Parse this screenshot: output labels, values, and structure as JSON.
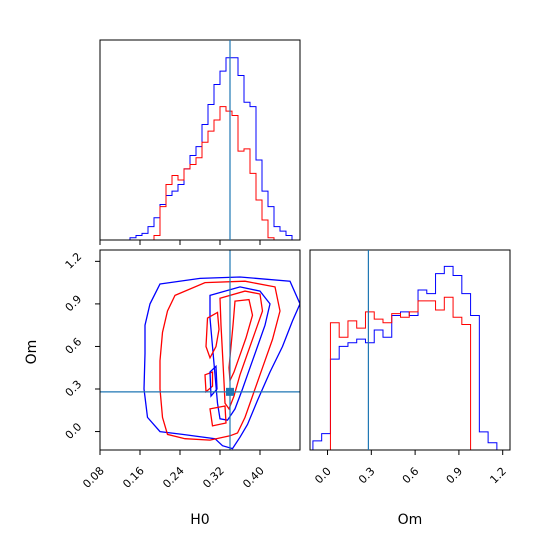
{
  "chart_data": {
    "type": "corner",
    "parameters": [
      "H0",
      "Om"
    ],
    "truths": {
      "H0": 0.34,
      "Om": 0.28
    },
    "colors": {
      "blue": "#0000ff",
      "red": "#ff0000",
      "truth": "#1f77b4"
    },
    "panels": [
      {
        "id": "hist-H0",
        "type": "histogram",
        "xlim": [
          0.08,
          0.48
        ],
        "x_ticks": [
          0.08,
          0.16,
          0.24,
          0.32,
          0.4
        ],
        "edges": [
          0.14,
          0.152,
          0.164,
          0.176,
          0.188,
          0.2,
          0.212,
          0.224,
          0.236,
          0.248,
          0.26,
          0.272,
          0.284,
          0.296,
          0.308,
          0.32,
          0.332,
          0.344,
          0.356,
          0.368,
          0.38,
          0.392,
          0.404,
          0.416,
          0.428,
          0.44,
          0.452,
          0.464
        ],
        "series": [
          {
            "name": "blue",
            "values": [
              0.01,
              0.02,
              0.03,
              0.06,
              0.1,
              0.16,
              0.2,
              0.22,
              0.25,
              0.32,
              0.38,
              0.42,
              0.52,
              0.61,
              0.7,
              0.76,
              0.82,
              0.82,
              0.74,
              0.62,
              0.6,
              0.36,
              0.22,
              0.15,
              0.06,
              0.04,
              0.02
            ]
          },
          {
            "name": "red",
            "values": [
              0,
              0,
              0,
              0,
              0.02,
              0.15,
              0.25,
              0.29,
              0.27,
              0.32,
              0.34,
              0.37,
              0.44,
              0.49,
              0.54,
              0.6,
              0.58,
              0.56,
              0.4,
              0.41,
              0.3,
              0.18,
              0.09,
              0.01,
              0,
              0,
              0
            ]
          }
        ]
      },
      {
        "id": "hist-Om",
        "type": "histogram",
        "xlim": [
          -0.12,
          1.25
        ],
        "x_ticks": [
          0.0,
          0.3,
          0.6,
          0.9,
          1.2
        ],
        "edges": [
          -0.1,
          -0.04,
          0.02,
          0.08,
          0.14,
          0.2,
          0.26,
          0.32,
          0.38,
          0.44,
          0.5,
          0.56,
          0.62,
          0.68,
          0.74,
          0.8,
          0.86,
          0.92,
          0.98,
          1.04,
          1.1,
          1.16
        ],
        "series": [
          {
            "name": "blue",
            "values": [
              0.05,
              0.09,
              0.5,
              0.57,
              0.59,
              0.61,
              0.59,
              0.66,
              0.62,
              0.74,
              0.76,
              0.74,
              0.88,
              0.86,
              0.97,
              1.01,
              0.96,
              0.86,
              0.74,
              0.1,
              0.04
            ]
          },
          {
            "name": "red",
            "values": [
              0,
              0,
              0.7,
              0.62,
              0.71,
              0.67,
              0.76,
              0.72,
              0.7,
              0.75,
              0.73,
              0.76,
              0.82,
              0.82,
              0.77,
              0.84,
              0.73,
              0.69,
              0,
              0,
              0
            ]
          }
        ]
      },
      {
        "id": "scatter-H0-Om",
        "type": "contour",
        "xlim": [
          0.08,
          0.48
        ],
        "ylim": [
          -0.13,
          1.28
        ],
        "x_ticks": [
          0.08,
          0.16,
          0.24,
          0.32,
          0.4
        ],
        "y_ticks": [
          0.0,
          0.3,
          0.6,
          0.9,
          1.2
        ],
        "contours": [
          {
            "name": "blue-outer",
            "color": "blue",
            "points": [
              [
                0.2,
                1.04
              ],
              [
                0.28,
                1.08
              ],
              [
                0.36,
                1.09
              ],
              [
                0.46,
                1.06
              ],
              [
                0.48,
                0.9
              ],
              [
                0.465,
                0.78
              ],
              [
                0.445,
                0.6
              ],
              [
                0.42,
                0.42
              ],
              [
                0.395,
                0.22
              ],
              [
                0.375,
                0.05
              ],
              [
                0.36,
                -0.04
              ],
              [
                0.345,
                -0.12
              ],
              [
                0.325,
                -0.1
              ],
              [
                0.31,
                -0.05
              ],
              [
                0.245,
                -0.02
              ],
              [
                0.2,
                0.0
              ],
              [
                0.175,
                0.1
              ],
              [
                0.168,
                0.3
              ],
              [
                0.17,
                0.55
              ],
              [
                0.17,
                0.75
              ],
              [
                0.18,
                0.9
              ],
              [
                0.2,
                1.04
              ]
            ]
          },
          {
            "name": "red-outer",
            "color": "red",
            "points": [
              [
                0.23,
                0.96
              ],
              [
                0.29,
                1.05
              ],
              [
                0.37,
                1.06
              ],
              [
                0.43,
                1.02
              ],
              [
                0.44,
                0.85
              ],
              [
                0.425,
                0.65
              ],
              [
                0.405,
                0.45
              ],
              [
                0.385,
                0.25
              ],
              [
                0.37,
                0.1
              ],
              [
                0.355,
                -0.01
              ],
              [
                0.34,
                -0.03
              ],
              [
                0.3,
                -0.06
              ],
              [
                0.25,
                -0.05
              ],
              [
                0.215,
                -0.02
              ],
              [
                0.205,
                0.1
              ],
              [
                0.2,
                0.3
              ],
              [
                0.2,
                0.5
              ],
              [
                0.205,
                0.7
              ],
              [
                0.215,
                0.85
              ],
              [
                0.23,
                0.96
              ]
            ]
          },
          {
            "name": "blue-mid",
            "color": "blue",
            "points": [
              [
                0.3,
                0.96
              ],
              [
                0.36,
                1.02
              ],
              [
                0.4,
                0.99
              ],
              [
                0.42,
                0.9
              ],
              [
                0.41,
                0.75
              ],
              [
                0.395,
                0.6
              ],
              [
                0.38,
                0.45
              ],
              [
                0.365,
                0.3
              ],
              [
                0.35,
                0.16
              ],
              [
                0.335,
                0.08
              ],
              [
                0.32,
                0.09
              ],
              [
                0.315,
                0.2
              ],
              [
                0.31,
                0.4
              ],
              [
                0.305,
                0.6
              ],
              [
                0.3,
                0.8
              ],
              [
                0.3,
                0.96
              ]
            ]
          },
          {
            "name": "red-mid",
            "color": "red",
            "points": [
              [
                0.32,
                0.94
              ],
              [
                0.37,
                0.99
              ],
              [
                0.4,
                0.97
              ],
              [
                0.405,
                0.85
              ],
              [
                0.39,
                0.7
              ],
              [
                0.375,
                0.55
              ],
              [
                0.36,
                0.4
              ],
              [
                0.348,
                0.25
              ],
              [
                0.338,
                0.16
              ],
              [
                0.33,
                0.2
              ],
              [
                0.328,
                0.35
              ],
              [
                0.325,
                0.55
              ],
              [
                0.322,
                0.75
              ],
              [
                0.32,
                0.94
              ]
            ]
          },
          {
            "name": "red-inner",
            "color": "red",
            "points": [
              [
                0.35,
                0.92
              ],
              [
                0.378,
                0.93
              ],
              [
                0.385,
                0.82
              ],
              [
                0.372,
                0.66
              ],
              [
                0.358,
                0.52
              ],
              [
                0.348,
                0.42
              ],
              [
                0.34,
                0.36
              ],
              [
                0.338,
                0.45
              ],
              [
                0.342,
                0.6
              ],
              [
                0.346,
                0.75
              ],
              [
                0.35,
                0.92
              ]
            ]
          },
          {
            "name": "red-left-lobe",
            "color": "red",
            "points": [
              [
                0.295,
                0.8
              ],
              [
                0.315,
                0.84
              ],
              [
                0.318,
                0.72
              ],
              [
                0.312,
                0.6
              ],
              [
                0.3,
                0.52
              ],
              [
                0.292,
                0.6
              ],
              [
                0.295,
                0.8
              ]
            ]
          },
          {
            "name": "red-small-lobe",
            "color": "red",
            "points": [
              [
                0.29,
                0.4
              ],
              [
                0.305,
                0.42
              ],
              [
                0.305,
                0.32
              ],
              [
                0.292,
                0.28
              ],
              [
                0.29,
                0.4
              ]
            ]
          },
          {
            "name": "blue-small-lobe",
            "color": "blue",
            "points": [
              [
                0.3,
                0.42
              ],
              [
                0.312,
                0.46
              ],
              [
                0.314,
                0.3
              ],
              [
                0.302,
                0.25
              ],
              [
                0.3,
                0.42
              ]
            ]
          },
          {
            "name": "red-bottom-lobe",
            "color": "red",
            "points": [
              [
                0.3,
                0.16
              ],
              [
                0.33,
                0.18
              ],
              [
                0.332,
                0.06
              ],
              [
                0.305,
                0.04
              ],
              [
                0.3,
                0.16
              ]
            ]
          }
        ]
      }
    ]
  }
}
